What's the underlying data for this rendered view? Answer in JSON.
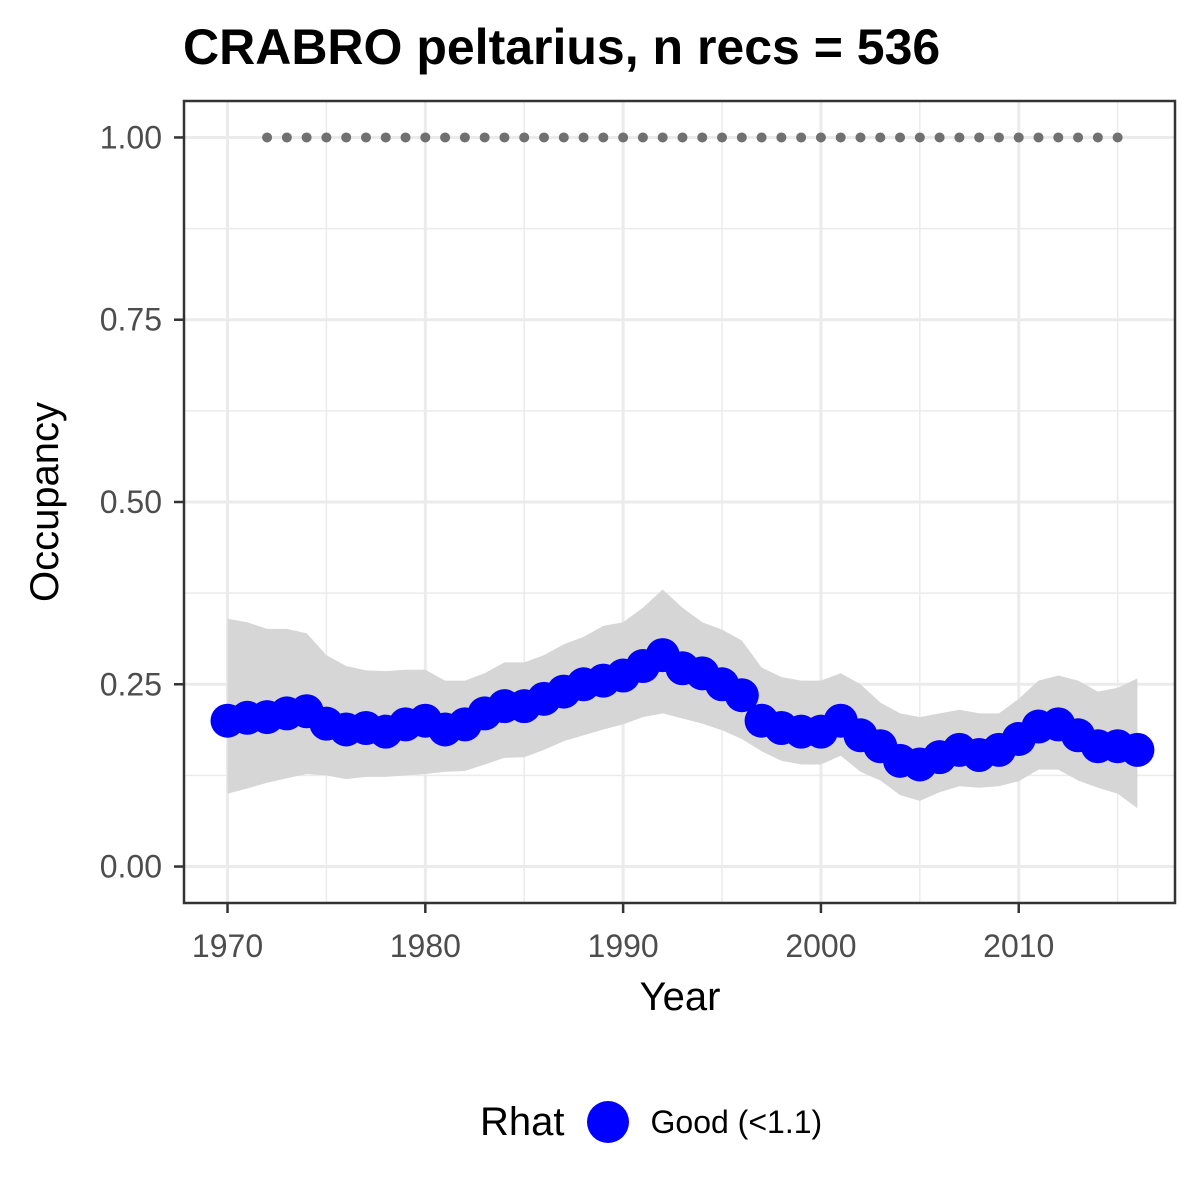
{
  "chart_data": {
    "type": "line",
    "title": "CRABRO peltarius, n recs = 536",
    "xlabel": "Year",
    "ylabel": "Occupancy",
    "xlim": [
      1967.8,
      2017.9
    ],
    "ylim": [
      -0.05,
      1.05
    ],
    "x_ticks": [
      1970,
      1980,
      1990,
      2000,
      2010
    ],
    "x_tick_labels": [
      "1970",
      "1980",
      "1990",
      "2000",
      "2010"
    ],
    "y_ticks": [
      0,
      0.25,
      0.5,
      0.75,
      1.0
    ],
    "y_tick_labels": [
      "0.00",
      "0.25",
      "0.50",
      "0.75",
      "1.00"
    ],
    "grid": true,
    "legend": {
      "position": "bottom",
      "title": "Rhat",
      "entries": [
        {
          "label": "Good (<1.1)",
          "color": "#0000ff"
        }
      ]
    },
    "colors": {
      "series": "#0000ff",
      "ribbon": "#d6d6d6",
      "record_dots": "#707070",
      "grid": "#ebebeb",
      "panel_border": "#333333"
    },
    "years": [
      1970,
      1971,
      1972,
      1973,
      1974,
      1975,
      1976,
      1977,
      1978,
      1979,
      1980,
      1981,
      1982,
      1983,
      1984,
      1985,
      1986,
      1987,
      1988,
      1989,
      1990,
      1991,
      1992,
      1993,
      1994,
      1995,
      1996,
      1997,
      1998,
      1999,
      2000,
      2001,
      2002,
      2003,
      2004,
      2005,
      2006,
      2007,
      2008,
      2009,
      2010,
      2011,
      2012,
      2013,
      2014,
      2015,
      2016
    ],
    "series": [
      {
        "values": [
          0.2,
          0.204,
          0.205,
          0.21,
          0.213,
          0.196,
          0.188,
          0.19,
          0.185,
          0.195,
          0.2,
          0.188,
          0.195,
          0.21,
          0.22,
          0.22,
          0.23,
          0.24,
          0.25,
          0.255,
          0.262,
          0.275,
          0.29,
          0.272,
          0.265,
          0.25,
          0.235,
          0.2,
          0.19,
          0.185,
          0.185,
          0.2,
          0.18,
          0.165,
          0.145,
          0.14,
          0.15,
          0.16,
          0.153,
          0.16,
          0.175,
          0.192,
          0.195,
          0.18,
          0.165,
          0.165,
          0.16
        ],
        "lower": [
          0.1,
          0.107,
          0.115,
          0.121,
          0.127,
          0.125,
          0.12,
          0.123,
          0.123,
          0.125,
          0.127,
          0.13,
          0.131,
          0.14,
          0.149,
          0.15,
          0.16,
          0.172,
          0.18,
          0.188,
          0.195,
          0.205,
          0.21,
          0.203,
          0.196,
          0.187,
          0.175,
          0.158,
          0.145,
          0.14,
          0.14,
          0.152,
          0.13,
          0.118,
          0.098,
          0.09,
          0.102,
          0.11,
          0.108,
          0.11,
          0.117,
          0.133,
          0.133,
          0.118,
          0.108,
          0.1,
          0.08
        ],
        "upper": [
          0.34,
          0.335,
          0.326,
          0.326,
          0.32,
          0.29,
          0.275,
          0.269,
          0.268,
          0.27,
          0.27,
          0.255,
          0.255,
          0.265,
          0.28,
          0.28,
          0.29,
          0.305,
          0.315,
          0.33,
          0.335,
          0.355,
          0.38,
          0.355,
          0.335,
          0.325,
          0.31,
          0.273,
          0.26,
          0.255,
          0.255,
          0.265,
          0.25,
          0.225,
          0.21,
          0.205,
          0.21,
          0.215,
          0.21,
          0.21,
          0.23,
          0.255,
          0.262,
          0.255,
          0.24,
          0.245,
          0.258
        ]
      }
    ],
    "record_years": [
      1972,
      1973,
      1974,
      1975,
      1976,
      1977,
      1978,
      1979,
      1980,
      1981,
      1982,
      1983,
      1984,
      1985,
      1986,
      1987,
      1988,
      1989,
      1990,
      1991,
      1992,
      1993,
      1994,
      1995,
      1996,
      1997,
      1998,
      1999,
      2000,
      2001,
      2002,
      2003,
      2004,
      2005,
      2006,
      2007,
      2008,
      2009,
      2010,
      2011,
      2012,
      2013,
      2014,
      2015
    ],
    "record_y": 1.0
  }
}
